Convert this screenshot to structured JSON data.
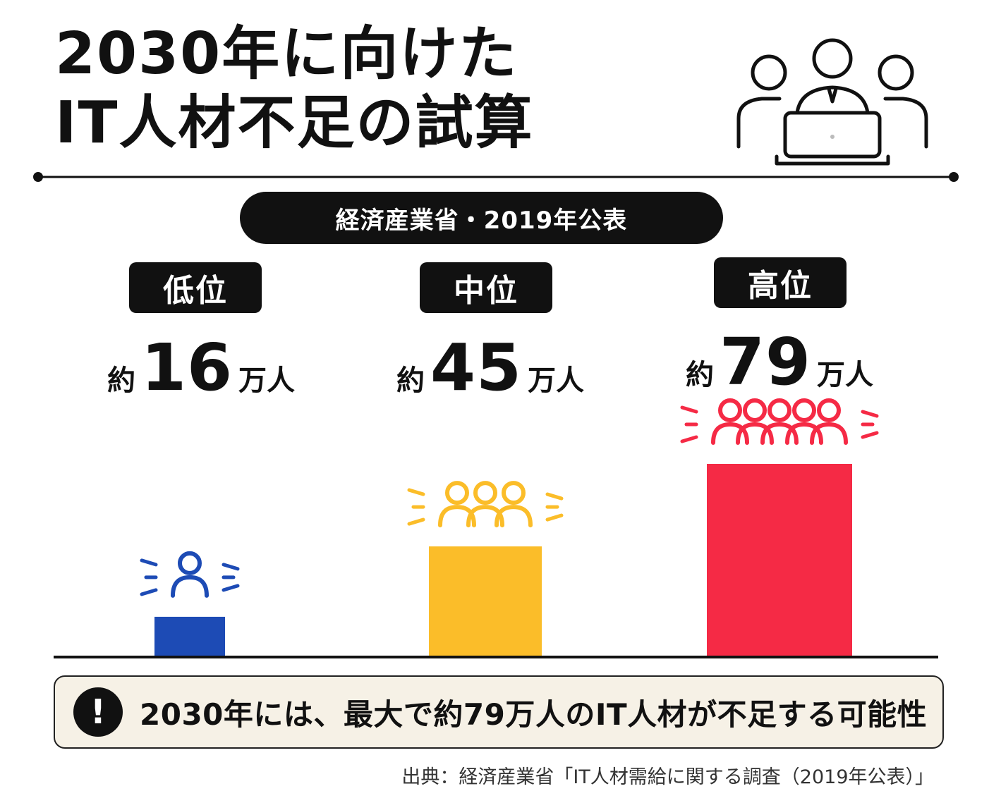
{
  "title": {
    "line1": "2030年に向けた",
    "line2": "IT人材不足の試算"
  },
  "source_badge": "経済産業省・2019年公表",
  "chart_data": {
    "type": "bar",
    "categories": [
      "低位",
      "中位",
      "高位"
    ],
    "values": [
      16,
      45,
      79
    ],
    "value_labels": [
      {
        "prefix": "約",
        "number": "16",
        "unit": "万人"
      },
      {
        "prefix": "約",
        "number": "45",
        "unit": "万人"
      },
      {
        "prefix": "約",
        "number": "79",
        "unit": "万人"
      }
    ],
    "colors": [
      "#1d4bb5",
      "#fbbd29",
      "#f52a45"
    ],
    "ylim": [
      0,
      100
    ],
    "grid": false,
    "legend": "none",
    "icons": [
      "person-icon",
      "group-of-three-icon",
      "group-of-five-icon"
    ]
  },
  "callout": {
    "icon": "exclamation-icon",
    "text": "2030年には、最大で約79万人のIT人材が不足する可能性"
  },
  "footnote": "出典：経済産業省「IT人材需給に関する調査（2019年公表）」"
}
